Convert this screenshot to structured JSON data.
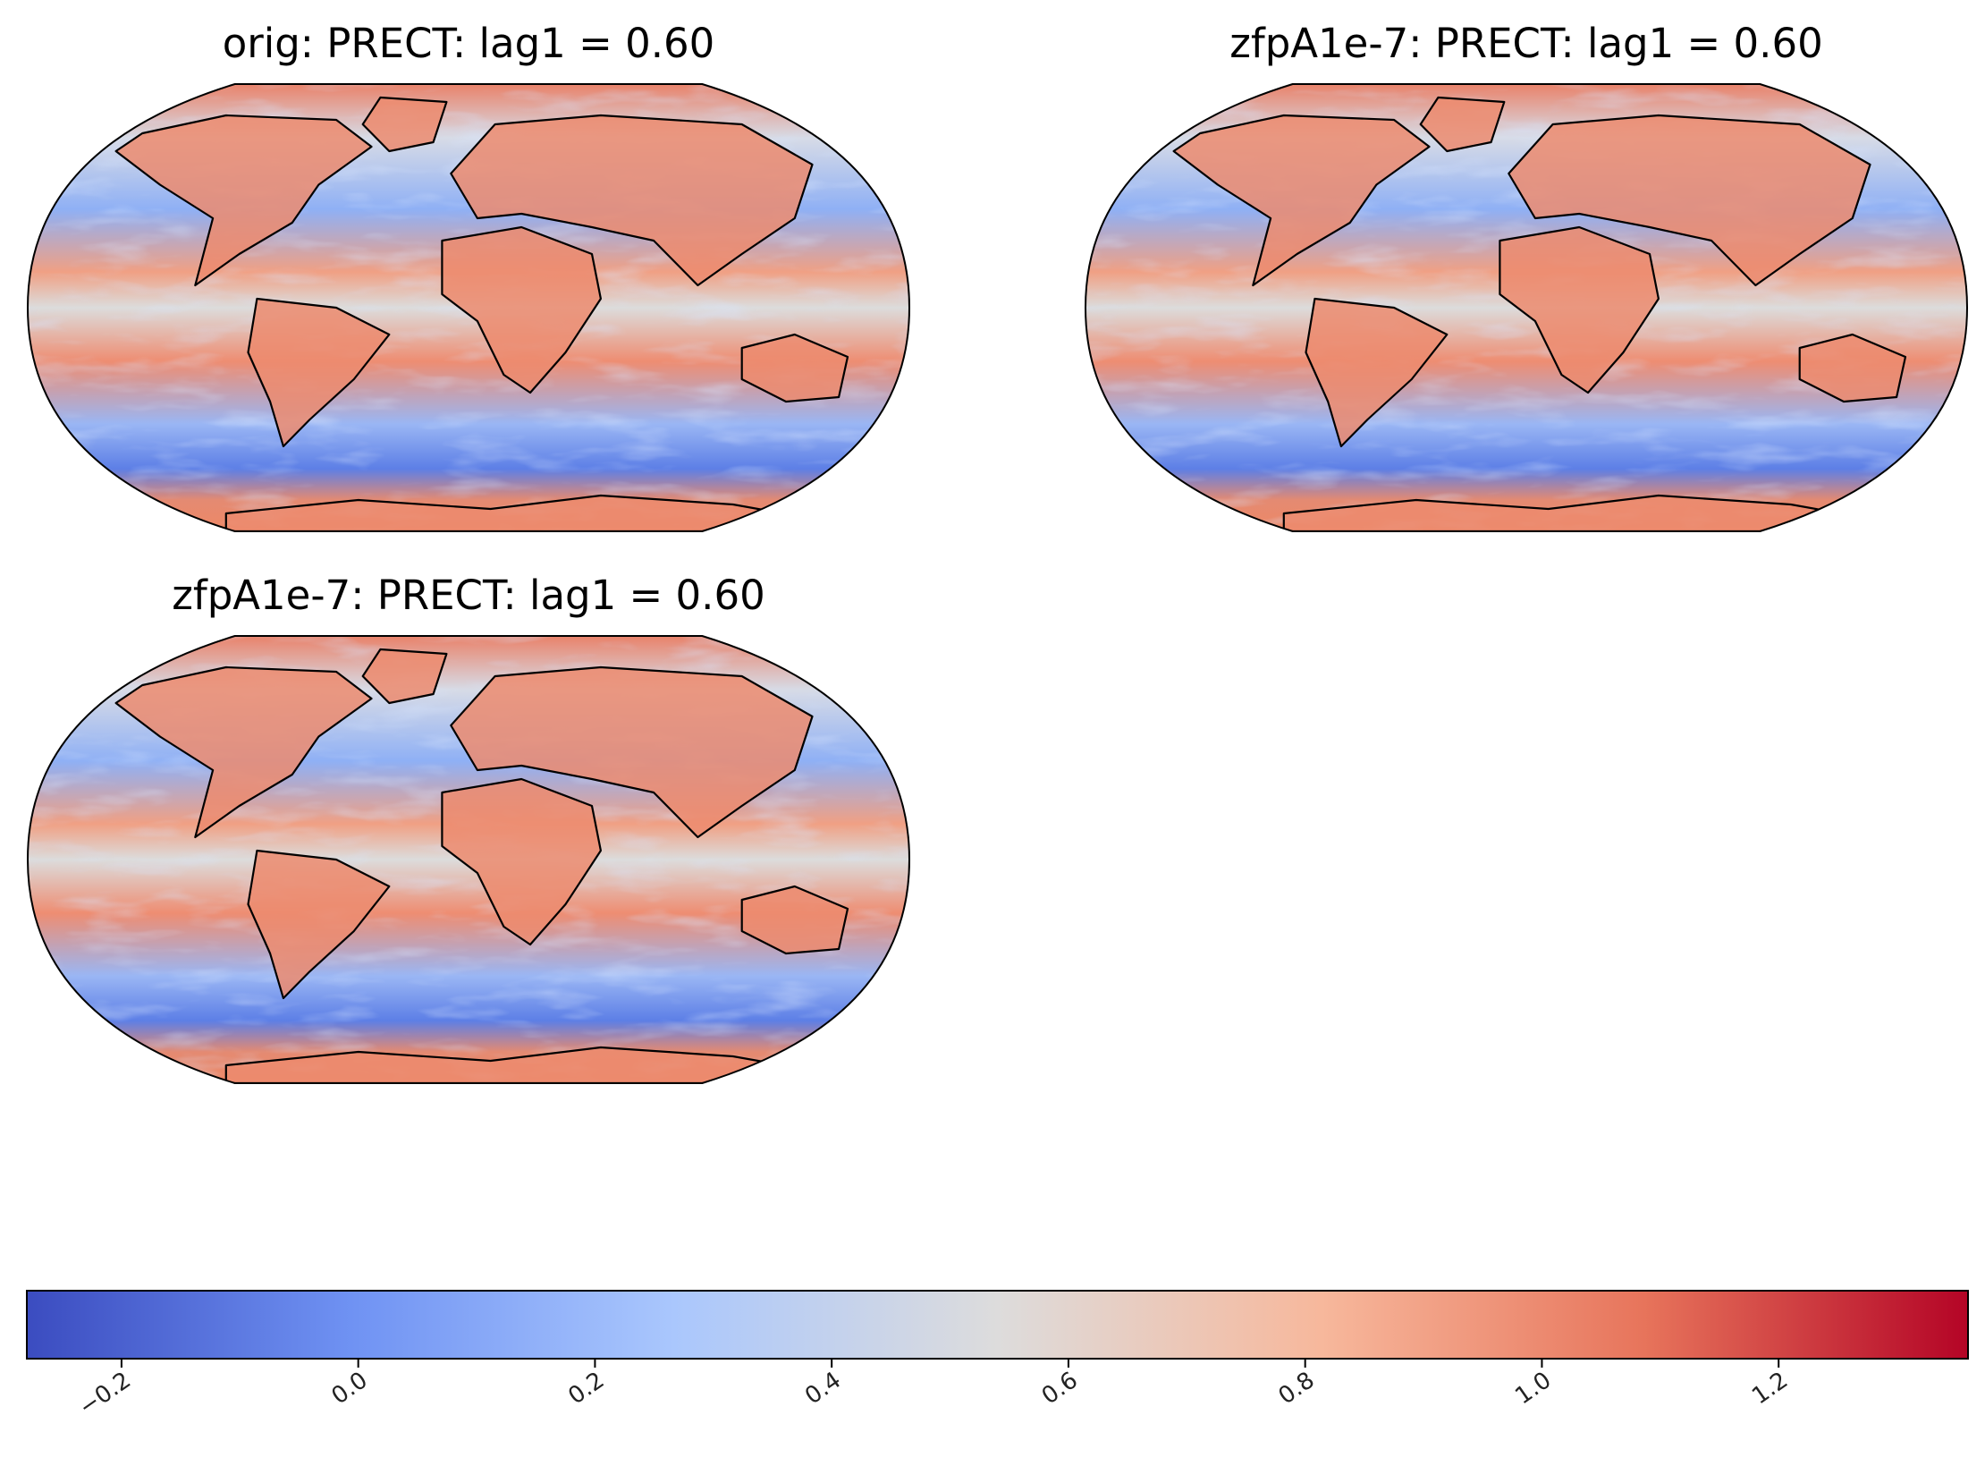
{
  "chart_data": {
    "type": "heatmap",
    "colormap": "coolwarm",
    "panels": [
      {
        "title": "orig: PRECT: lag1 =  0.60",
        "variable": "PRECT",
        "statistic": "lag1",
        "value": 0.6
      },
      {
        "title": "zfpA1e-7: PRECT: lag1 =  0.60",
        "variable": "PRECT",
        "statistic": "lag1",
        "value": 0.6
      },
      {
        "title": "zfpA1e-7: PRECT: lag1 =  0.60",
        "variable": "PRECT",
        "statistic": "lag1",
        "value": 0.6
      }
    ],
    "colorbar": {
      "range": [
        -0.28,
        1.36
      ],
      "ticks": [
        -0.2,
        0.0,
        0.2,
        0.4,
        0.6,
        0.8,
        1.0,
        1.2
      ],
      "tick_labels": [
        "−0.2",
        "0.0",
        "0.2",
        "0.4",
        "0.6",
        "0.8",
        "1.0",
        "1.2"
      ],
      "colors": [
        "#3b4cc0",
        "#6f92f3",
        "#aac7fd",
        "#dddcdc",
        "#f7b89c",
        "#e7745b",
        "#b40426"
      ]
    }
  }
}
